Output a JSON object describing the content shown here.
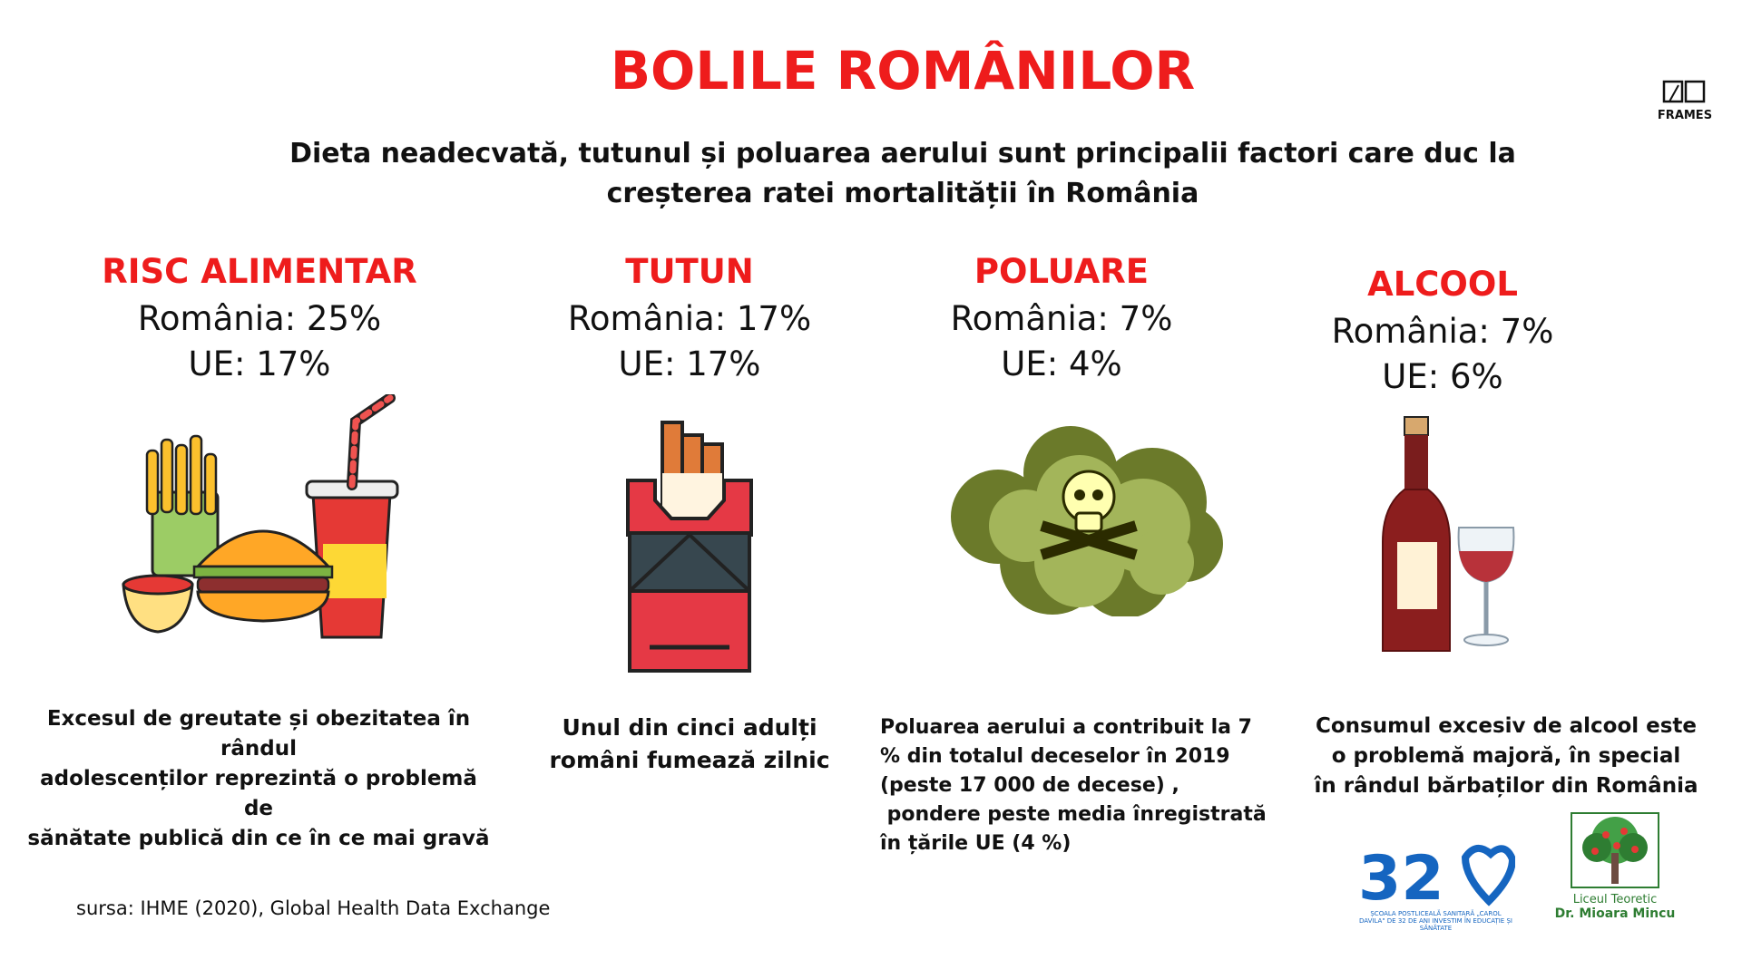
{
  "page": {
    "title": "BOLILE ROMÂNILOR",
    "subtitle": "Dieta neadecvată, tutunul și poluarea aerului sunt principalii factori care duc la creșterea ratei mortalității în România"
  },
  "colors": {
    "accent_red": "#ee1c1c",
    "text": "#111111",
    "logo_blue": "#1565c0",
    "logo_green": "#2e7d32"
  },
  "brand": {
    "frames_logo_text": "FRAMES"
  },
  "factors": [
    {
      "heading": "RISC ALIMENTAR",
      "romania": "România: 25%",
      "eu": "UE: 17%",
      "icon": "fast-food-icon",
      "description": [
        "Excesul de greutate și obezitatea în rândul",
        "adolescenților  reprezintă o problemă de",
        "sănătate publică din ce în ce mai gravă"
      ]
    },
    {
      "heading": "TUTUN",
      "romania": "România: 17%",
      "eu": "UE: 17%",
      "icon": "cigarette-pack-icon",
      "description": [
        "Unul din cinci adulți",
        "români fumează zilnic"
      ]
    },
    {
      "heading": "POLUARE",
      "romania": "România: 7%",
      "eu": "UE: 4%",
      "icon": "toxic-cloud-icon",
      "description": [
        "Poluarea aerului a contribuit la 7",
        "% din totalul deceselor în 2019",
        "(peste 17 000 de decese) ,",
        " pondere peste media înregistrată",
        "în țările UE (4 %)"
      ]
    },
    {
      "heading": "ALCOOL",
      "romania": "România: 7%",
      "eu": "UE: 6%",
      "icon": "wine-bottle-icon",
      "description": [
        "Consumul excesiv de alcool este",
        "o problemă majoră, în special",
        "în rândul bărbaților din România"
      ]
    }
  ],
  "source": "sursa:   IHME (2020), Global Health Data Exchange",
  "logos": {
    "school_number": "32",
    "school_badge": "EDUCAȚIE SĂNĂTATE",
    "school_caption": "ȘCOALA POSTLICEALĂ SANITARĂ „CAROL DAVILA\" DE 32 DE ANI INVESTIM ÎN EDUCAȚIE ȘI SĂNĂTATE",
    "lyceum_label": "Liceul Teoretic",
    "lyceum_name": "Dr. Mioara Mincu"
  }
}
